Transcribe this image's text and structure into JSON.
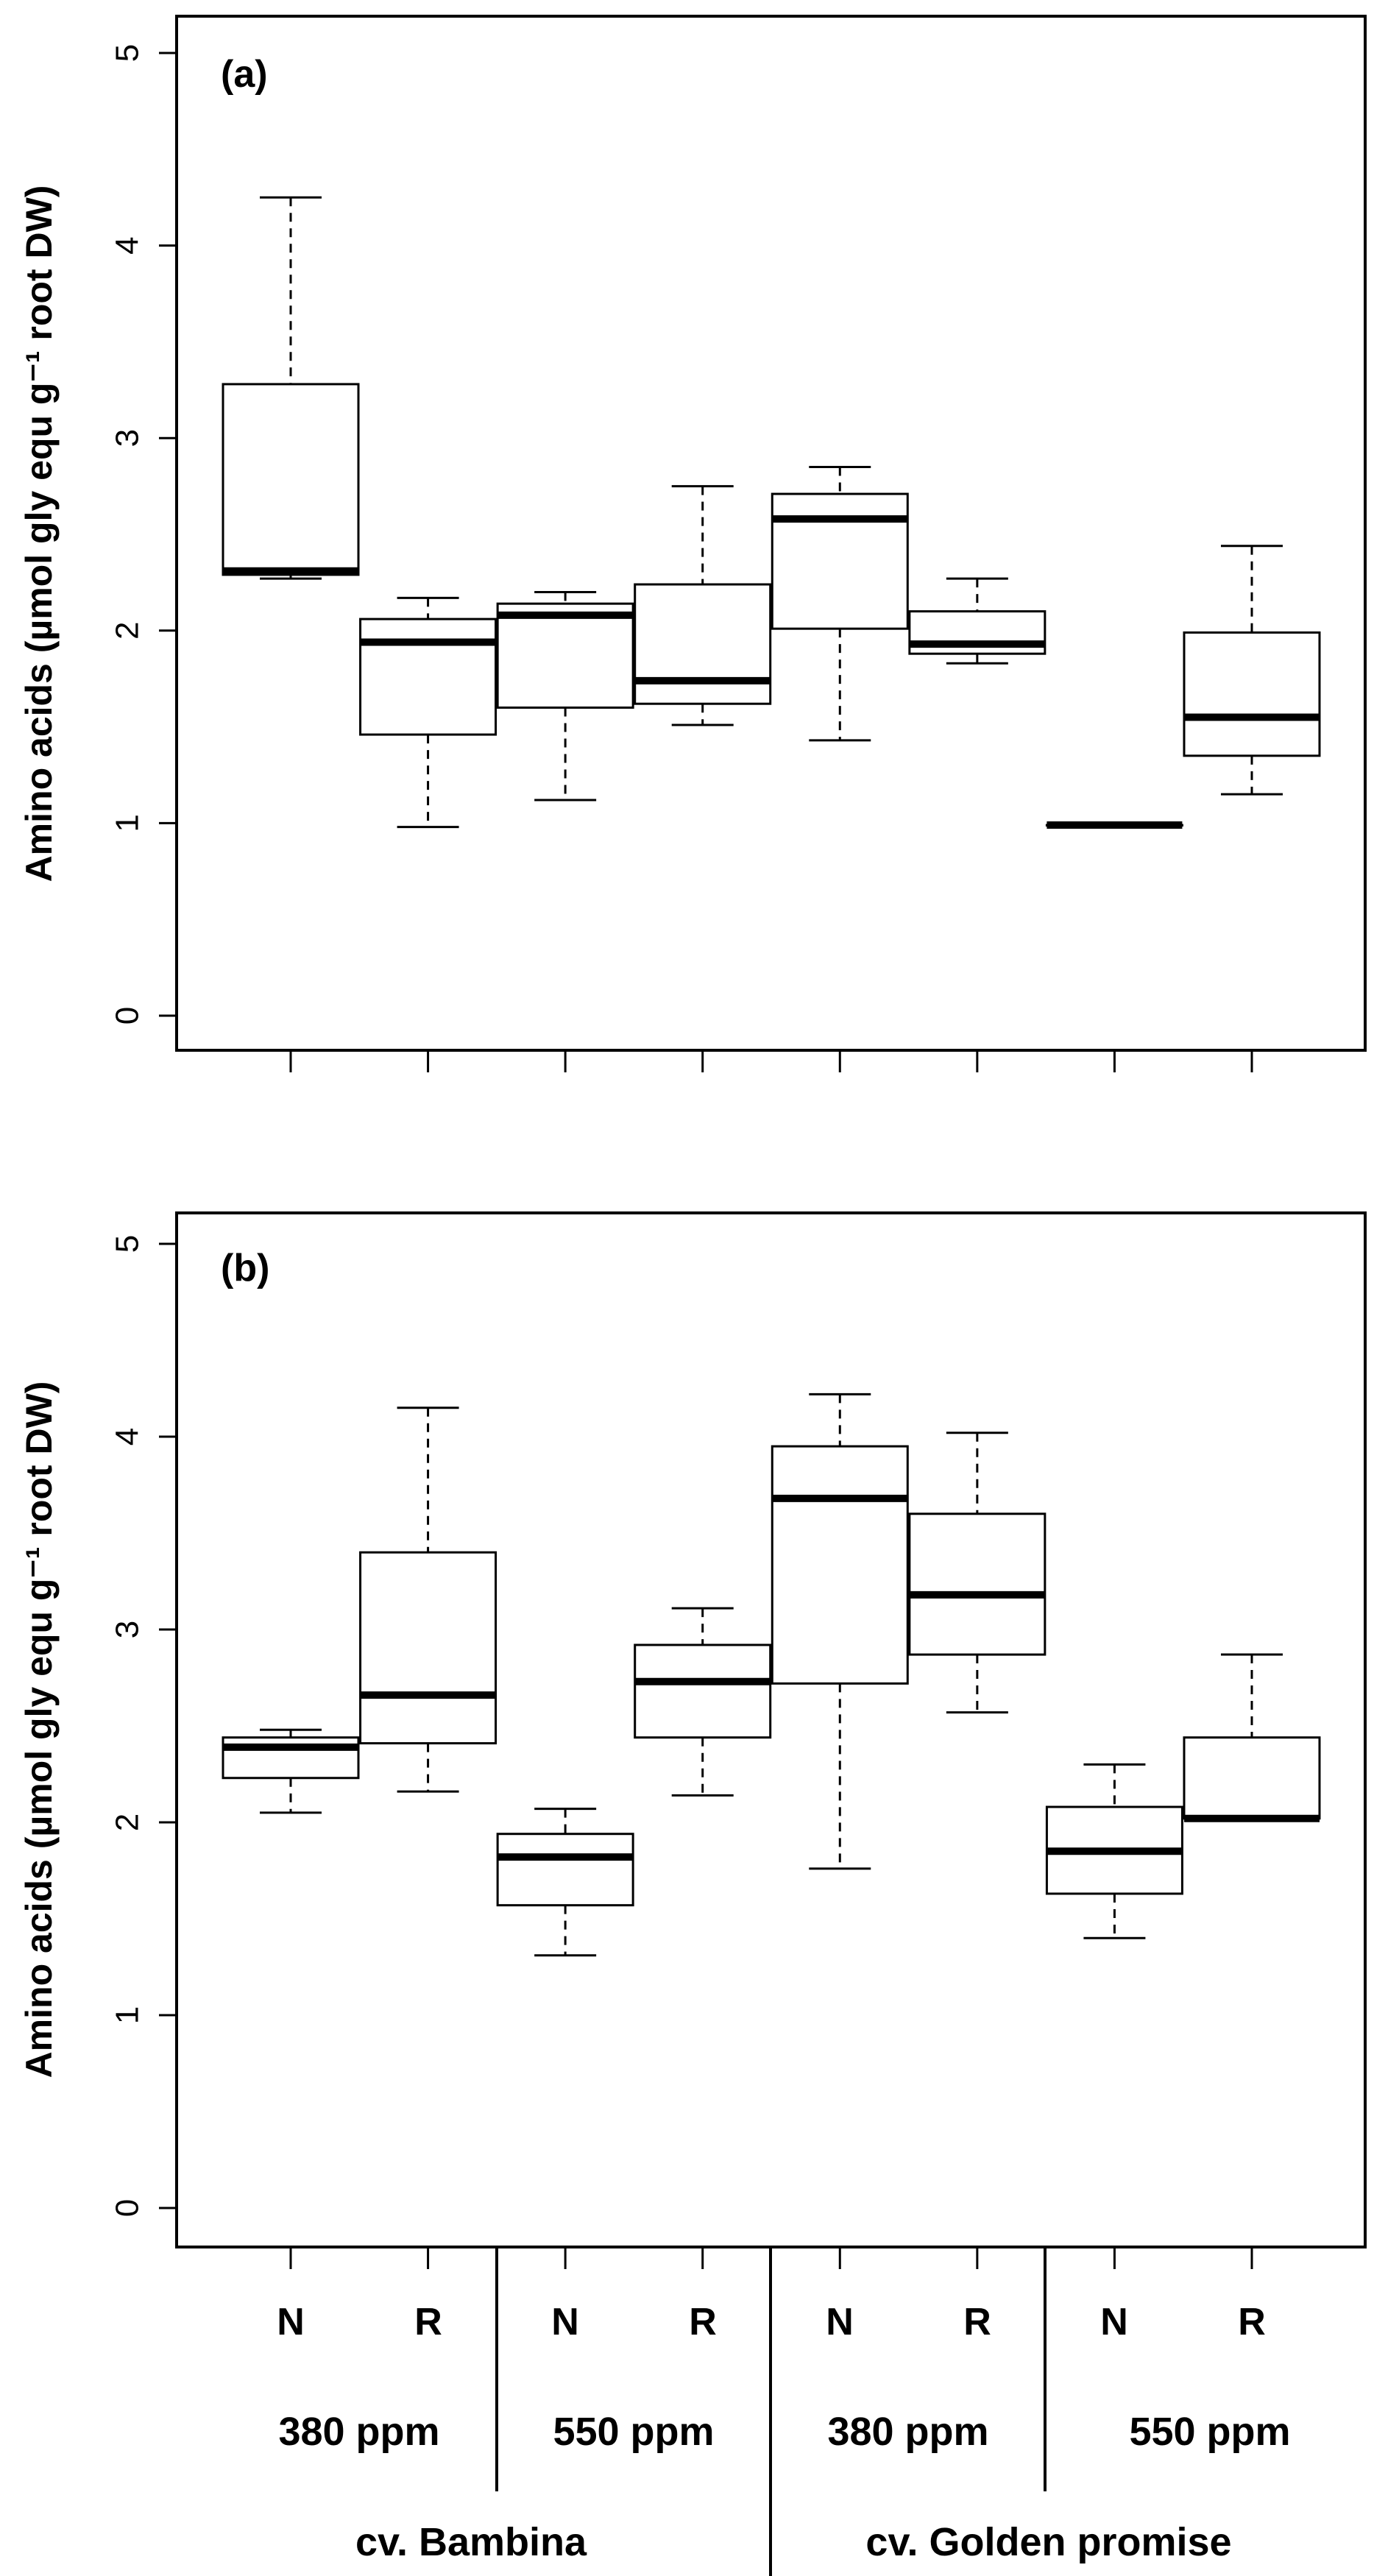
{
  "chart_data": [
    {
      "type": "box",
      "panel_label": "(a)",
      "ylabel": "Amino acids (µmol gly equ  g⁻¹ root DW)",
      "ylim": [
        0,
        5
      ],
      "yticks": [
        "0",
        "1",
        "2",
        "3",
        "4",
        "5"
      ],
      "categories": [
        "N",
        "R",
        "N",
        "R",
        "N",
        "R",
        "N",
        "R"
      ],
      "boxes": [
        {
          "min": 2.27,
          "q1": 2.29,
          "median": 2.31,
          "q3": 3.28,
          "max": 4.25
        },
        {
          "min": 0.98,
          "q1": 1.46,
          "median": 1.94,
          "q3": 2.06,
          "max": 2.17
        },
        {
          "min": 1.12,
          "q1": 1.6,
          "median": 2.08,
          "q3": 2.14,
          "max": 2.2
        },
        {
          "min": 1.51,
          "q1": 1.62,
          "median": 1.74,
          "q3": 2.24,
          "max": 2.75
        },
        {
          "min": 1.43,
          "q1": 2.01,
          "median": 2.58,
          "q3": 2.71,
          "max": 2.85
        },
        {
          "min": 1.83,
          "q1": 1.88,
          "median": 1.93,
          "q3": 2.1,
          "max": 2.27
        },
        {
          "min": 0.99,
          "q1": 0.99,
          "median": 0.99,
          "q3": 0.99,
          "max": 0.99
        },
        {
          "min": 1.15,
          "q1": 1.35,
          "median": 1.55,
          "q3": 1.99,
          "max": 2.44
        }
      ]
    },
    {
      "type": "box",
      "panel_label": "(b)",
      "ylabel": "Amino acids (µmol gly equ  g⁻¹ root DW)",
      "ylim": [
        0,
        5
      ],
      "yticks": [
        "0",
        "1",
        "2",
        "3",
        "4",
        "5"
      ],
      "categories": [
        "N",
        "R",
        "N",
        "R",
        "N",
        "R",
        "N",
        "R"
      ],
      "boxes": [
        {
          "min": 2.05,
          "q1": 2.23,
          "median": 2.39,
          "q3": 2.44,
          "max": 2.48
        },
        {
          "min": 2.16,
          "q1": 2.41,
          "median": 2.66,
          "q3": 3.4,
          "max": 4.15
        },
        {
          "min": 1.31,
          "q1": 1.57,
          "median": 1.82,
          "q3": 1.94,
          "max": 2.07
        },
        {
          "min": 2.14,
          "q1": 2.44,
          "median": 2.73,
          "q3": 2.92,
          "max": 3.11
        },
        {
          "min": 1.76,
          "q1": 2.72,
          "median": 3.68,
          "q3": 3.95,
          "max": 4.22
        },
        {
          "min": 2.57,
          "q1": 2.87,
          "median": 3.18,
          "q3": 3.6,
          "max": 4.02
        },
        {
          "min": 1.4,
          "q1": 1.63,
          "median": 1.85,
          "q3": 2.08,
          "max": 2.3
        },
        {
          "min": 2.02,
          "q1": 2.02,
          "median": 2.02,
          "q3": 2.44,
          "max": 2.87
        }
      ]
    }
  ],
  "x_axis": {
    "conditions": [
      "380 ppm",
      "550 ppm",
      "380 ppm",
      "550 ppm"
    ],
    "cultivars": [
      "cv. Bambina",
      "cv. Golden promise"
    ]
  }
}
